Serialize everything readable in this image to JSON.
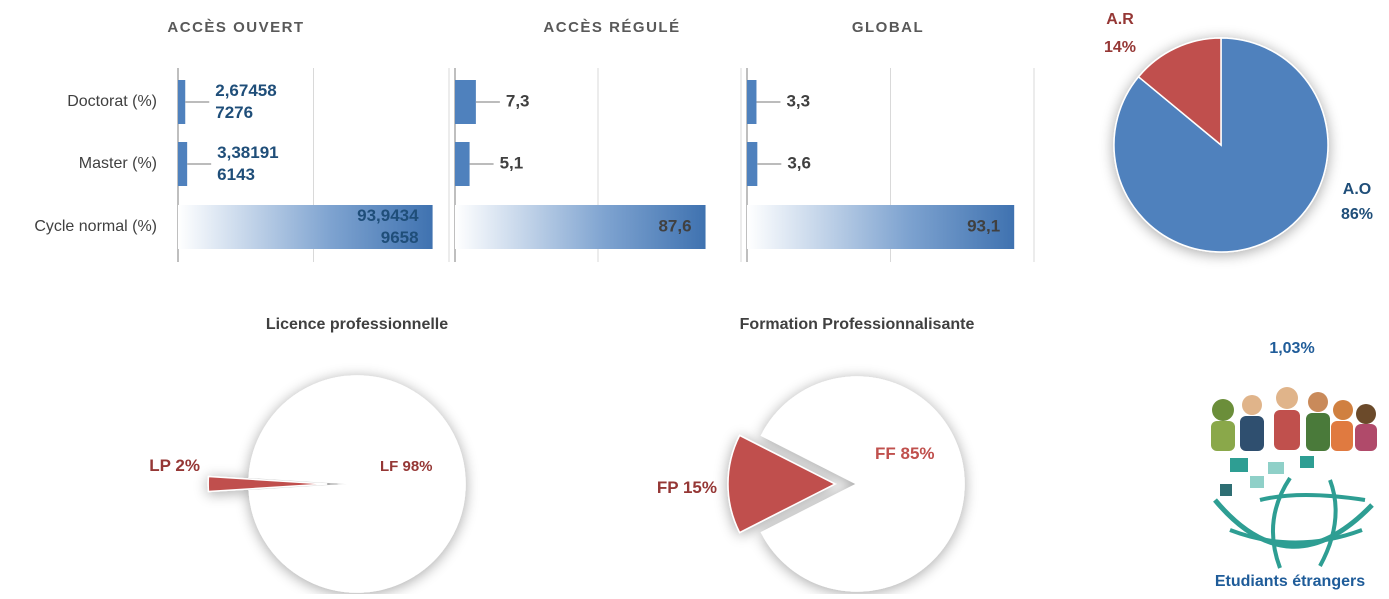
{
  "chart_data": [
    {
      "type": "barh",
      "title": "ACCÈS OUVERT",
      "categories": [
        "Doctorat (%)",
        "Master (%)",
        "Cycle normal (%)"
      ],
      "values": [
        2.674587276,
        3.381916143,
        93.94349658
      ],
      "value_labels": [
        "2,674587276",
        "3,381916143",
        "93,94349658"
      ],
      "xlim": [
        0,
        100
      ],
      "color": "#4f81bd",
      "label_color": "#1f4e79"
    },
    {
      "type": "barh",
      "title": "ACCÈS RÉGULÉ",
      "values": [
        7.3,
        5.1,
        87.6
      ],
      "value_labels": [
        "7,3",
        "5,1",
        "87,6"
      ],
      "xlim": [
        0,
        100
      ],
      "color": "#4f81bd",
      "label_color": "#404040"
    },
    {
      "type": "barh",
      "title": "GLOBAL",
      "values": [
        3.3,
        3.6,
        93.1
      ],
      "value_labels": [
        "3,3",
        "3,6",
        "93,1"
      ],
      "xlim": [
        0,
        100
      ],
      "color": "#4f81bd",
      "label_color": "#404040"
    },
    {
      "type": "pie",
      "categories": [
        "A.O",
        "A.R"
      ],
      "values": [
        86,
        14
      ],
      "value_labels": [
        "86%",
        "14%"
      ],
      "colors": [
        "#4f81bd",
        "#c0504d"
      ],
      "label_colors": [
        "#1f4e79",
        "#953735"
      ]
    },
    {
      "type": "pie",
      "title": "Licence professionnelle",
      "categories": [
        "LF",
        "LP"
      ],
      "values": [
        98,
        2
      ],
      "value_labels": [
        "98%",
        "2%"
      ],
      "colors": [
        "#ffffff",
        "#c0504d"
      ],
      "label_colors": [
        "#953735",
        "#953735"
      ]
    },
    {
      "type": "pie",
      "title": "Formation Professionnalisante",
      "categories": [
        "FF",
        "FP"
      ],
      "values": [
        85,
        15
      ],
      "value_labels": [
        "85%",
        "15%"
      ],
      "colors": [
        "#ffffff",
        "#c0504d"
      ],
      "label_colors": [
        "#c0504d",
        "#953735"
      ]
    }
  ],
  "foreign_students": {
    "value_label": "1,03%",
    "caption": "Etudiants étrangers"
  }
}
